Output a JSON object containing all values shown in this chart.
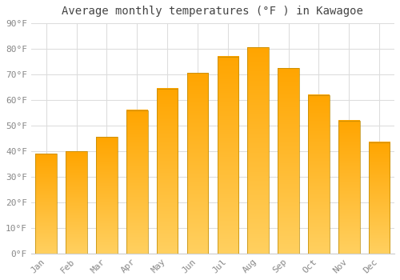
{
  "title": "Average monthly temperatures (°F ) in Kawagoe",
  "months": [
    "Jan",
    "Feb",
    "Mar",
    "Apr",
    "May",
    "Jun",
    "Jul",
    "Aug",
    "Sep",
    "Oct",
    "Nov",
    "Dec"
  ],
  "values": [
    39,
    40,
    45.5,
    56,
    64.5,
    70.5,
    77,
    80.5,
    72.5,
    62,
    52,
    43.5
  ],
  "bar_color_main": "#FFA500",
  "bar_color_light": "#FFD060",
  "bar_edge_color": "#BB8800",
  "ylim": [
    0,
    90
  ],
  "yticks": [
    0,
    10,
    20,
    30,
    40,
    50,
    60,
    70,
    80,
    90
  ],
  "ytick_labels": [
    "0°F",
    "10°F",
    "20°F",
    "30°F",
    "40°F",
    "50°F",
    "60°F",
    "70°F",
    "80°F",
    "90°F"
  ],
  "bg_color": "#FFFFFF",
  "grid_color": "#DDDDDD",
  "title_fontsize": 10,
  "tick_fontsize": 8,
  "bar_width": 0.7
}
